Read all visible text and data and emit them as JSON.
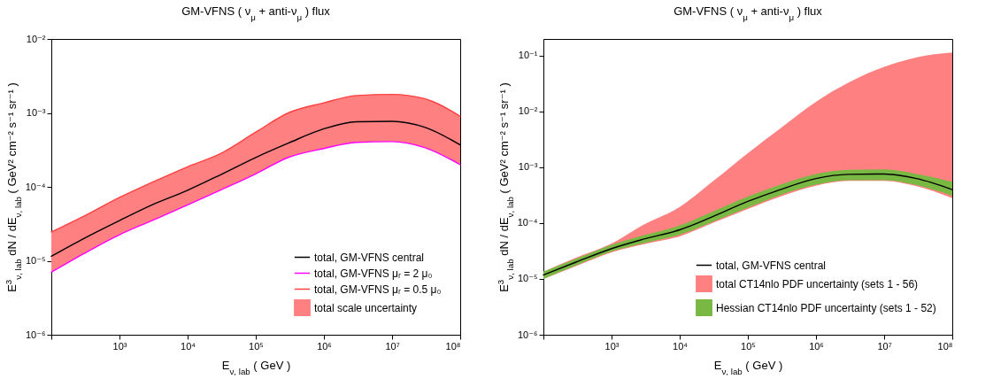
{
  "chart_data": [
    {
      "type": "line",
      "title": "GM-VFNS   ( ν$_{μ}$ + anti-ν$_{μ}$ )   flux",
      "xlabel": "E$_{ν, lab}$   ( GeV )",
      "ylabel": "E$^{3}$$_{ν, lab}$  dN / dE$_{ν, lab}$   ( GeV² cm⁻² s⁻¹ sr⁻¹ )",
      "log": "xy",
      "legend": "bottom right",
      "xlim": [
        100,
        100000000
      ],
      "ylim": [
        1e-06,
        0.01
      ],
      "xticks": [
        {
          "value": 100,
          "label": null
        },
        {
          "value": 1000,
          "label": "10³"
        },
        {
          "value": 10000,
          "label": "10⁴"
        },
        {
          "value": 100000,
          "label": "10⁵"
        },
        {
          "value": 1000000,
          "label": "10⁶"
        },
        {
          "value": 10000000,
          "label": "10⁷"
        },
        {
          "value": 100000000,
          "label": "10⁸"
        }
      ],
      "yticks": [
        {
          "value": 1e-06,
          "label": "10⁻⁶"
        },
        {
          "value": 1e-05,
          "label": "10⁻⁵"
        },
        {
          "value": 0.0001,
          "label": "10⁻⁴"
        },
        {
          "value": 0.001,
          "label": "10⁻³"
        },
        {
          "value": 0.01,
          "label": "10⁻²"
        }
      ],
      "x": [
        100,
        300,
        1000,
        3000,
        10000,
        30000,
        100000,
        300000,
        1000000,
        3000000,
        10000000,
        30000000,
        100000000
      ],
      "series": [
        {
          "name": "total,  GM-VFNS central",
          "color": "#000000",
          "values": [
            1.15e-05,
            2e-05,
            3.5e-05,
            5.7e-05,
            9e-05,
            0.000145,
            0.00025,
            0.00039,
            0.00061,
            0.00076,
            0.00077,
            0.00064,
            0.00037
          ]
        },
        {
          "name": "total,  GM-VFNS μᵣ = 2 μ₀",
          "color": "#ff00ff",
          "values": [
            7e-06,
            1.25e-05,
            2.25e-05,
            3.5e-05,
            5.7e-05,
            9e-05,
            0.00015,
            0.00025,
            0.00033,
            0.0004,
            0.00041,
            0.00034,
            0.0002
          ]
        },
        {
          "name": "total,  GM-VFNS μᵣ = 0.5 μ₀",
          "color": "#ff4040",
          "values": [
            2.45e-05,
            4e-05,
            7.2e-05,
            0.000115,
            0.000187,
            0.00028,
            0.00055,
            0.001,
            0.00137,
            0.00172,
            0.00178,
            0.00156,
            0.0009
          ]
        },
        {
          "name": "total scale uncertainty",
          "color": "#ff8080",
          "values": [
            null,
            null,
            null,
            null,
            null,
            null,
            null,
            null,
            null,
            null,
            null,
            null,
            null
          ],
          "lower": [
            7e-06,
            1.25e-05,
            2.25e-05,
            3.5e-05,
            5.7e-05,
            9e-05,
            0.00015,
            0.00025,
            0.00033,
            0.0004,
            0.00041,
            0.00034,
            0.0002
          ],
          "upper": [
            2.45e-05,
            4e-05,
            7.2e-05,
            0.000115,
            0.000187,
            0.00028,
            0.00055,
            0.001,
            0.00137,
            0.00172,
            0.00178,
            0.00156,
            0.0009
          ]
        }
      ]
    },
    {
      "type": "line",
      "title": "GM-VFNS   ( ν$_{μ}$ + anti-ν$_{μ}$ )   flux",
      "xlabel": "E$_{ν, lab}$   ( GeV )",
      "ylabel": "E$^{3}$$_{ν, lab}$  dN / dE$_{ν, lab}$   ( GeV² cm⁻² s⁻¹ sr⁻¹ )",
      "log": "xy",
      "legend": "bottom right",
      "xlim": [
        100,
        100000000
      ],
      "ylim": [
        1e-06,
        0.2
      ],
      "xticks": [
        {
          "value": 100,
          "label": null
        },
        {
          "value": 1000,
          "label": "10³"
        },
        {
          "value": 10000,
          "label": "10⁴"
        },
        {
          "value": 100000,
          "label": "10⁵"
        },
        {
          "value": 1000000,
          "label": "10⁶"
        },
        {
          "value": 10000000,
          "label": "10⁷"
        },
        {
          "value": 100000000,
          "label": "10⁸"
        }
      ],
      "yticks": [
        {
          "value": 1e-06,
          "label": "10⁻⁶"
        },
        {
          "value": 1e-05,
          "label": "10⁻⁵"
        },
        {
          "value": 0.0001,
          "label": "10⁻⁴"
        },
        {
          "value": 0.001,
          "label": "10⁻³"
        },
        {
          "value": 0.01,
          "label": "10⁻²"
        },
        {
          "value": 0.1,
          "label": "10⁻¹"
        }
      ],
      "x": [
        100,
        300,
        1000,
        3000,
        10000,
        30000,
        100000,
        300000,
        1000000,
        3000000,
        10000000,
        30000000,
        100000000
      ],
      "series": [
        {
          "name": "total,  GM-VFNS central",
          "color": "#000000",
          "values": [
            1.18e-05,
            2e-05,
            3.5e-05,
            5.2e-05,
            7.6e-05,
            0.00013,
            0.000245,
            0.0004,
            0.00063,
            0.00075,
            0.00076,
            0.00063,
            0.0004
          ]
        },
        {
          "name": "total CT14nlo PDF uncertainty (sets 1 - 56)",
          "color": "#ff8080",
          "values": [
            null,
            null,
            null,
            null,
            null,
            null,
            null,
            null,
            null,
            null,
            null,
            null,
            null
          ],
          "lower": [
            1e-05,
            1.7e-05,
            3e-05,
            4.2e-05,
            5.8e-05,
            0.0001,
            0.00018,
            0.0003,
            0.00047,
            0.00057,
            0.00057,
            0.00046,
            0.00028
          ],
          "upper": [
            1.35e-05,
            2.4e-05,
            4.3e-05,
            9.5e-05,
            0.000195,
            0.00055,
            0.0018,
            0.005,
            0.015,
            0.033,
            0.063,
            0.094,
            0.115
          ]
        },
        {
          "name": "Hessian CT14nlo PDF uncertainty (sets 1 - 52)",
          "color": "#78b843",
          "values": [
            null,
            null,
            null,
            null,
            null,
            null,
            null,
            null,
            null,
            null,
            null,
            null,
            null
          ],
          "lower": [
            1e-05,
            1.75e-05,
            3.1e-05,
            4.4e-05,
            6.2e-05,
            0.000105,
            0.00019,
            0.00032,
            0.00049,
            0.00059,
            0.00059,
            0.00048,
            0.00031
          ],
          "upper": [
            1.35e-05,
            2.3e-05,
            4.1e-05,
            6.1e-05,
            9.1e-05,
            0.00016,
            0.0003,
            0.00049,
            0.00076,
            0.0009,
            0.00092,
            0.00076,
            0.00055
          ]
        }
      ]
    }
  ]
}
